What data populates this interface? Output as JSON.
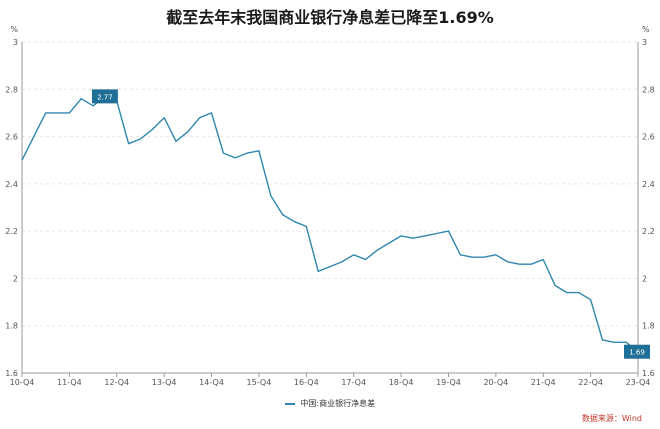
{
  "title": "截至去年末我国商业银行净息差已降至1.69%",
  "source": "数据来源：Wind",
  "colors": {
    "line": "#2f86ad",
    "grid": "#e6e6e6",
    "axis": "#999999",
    "callout": "#1f6f96"
  },
  "chart_data": {
    "type": "line",
    "title": "截至去年末我国商业银行净息差已降至1.69%",
    "xlabel": "",
    "ylabel": "%",
    "y2label": "%",
    "ylim": [
      1.6,
      3.0
    ],
    "yticks": [
      1.6,
      1.8,
      2,
      2.2,
      2.4,
      2.6,
      2.8,
      3
    ],
    "grid": true,
    "legend_position": "bottom",
    "x_tick_labels": [
      "10-Q4",
      "11-Q4",
      "12-Q4",
      "13-Q4",
      "14-Q4",
      "15-Q4",
      "16-Q4",
      "17-Q4",
      "18-Q4",
      "19-Q4",
      "20-Q4",
      "21-Q4",
      "22-Q4",
      "23-Q4"
    ],
    "x": [
      "10-Q4",
      "11-Q1",
      "11-Q2",
      "11-Q3",
      "11-Q4",
      "12-Q1",
      "12-Q2",
      "12-Q3",
      "12-Q4",
      "13-Q1",
      "13-Q2",
      "13-Q3",
      "13-Q4",
      "14-Q1",
      "14-Q2",
      "14-Q3",
      "14-Q4",
      "15-Q1",
      "15-Q2",
      "15-Q3",
      "15-Q4",
      "16-Q1",
      "16-Q2",
      "16-Q3",
      "16-Q4",
      "17-Q1",
      "17-Q2",
      "17-Q3",
      "17-Q4",
      "18-Q1",
      "18-Q2",
      "18-Q3",
      "18-Q4",
      "19-Q1",
      "19-Q2",
      "19-Q3",
      "19-Q4",
      "20-Q1",
      "20-Q2",
      "20-Q3",
      "20-Q4",
      "21-Q1",
      "21-Q2",
      "21-Q3",
      "21-Q4",
      "22-Q1",
      "22-Q2",
      "22-Q3",
      "22-Q4",
      "23-Q1",
      "23-Q2",
      "23-Q3",
      "23-Q4"
    ],
    "series": [
      {
        "name": "中国:商业银行净息差",
        "values": [
          2.5,
          2.6,
          2.7,
          2.7,
          2.7,
          2.76,
          2.73,
          2.77,
          2.75,
          2.57,
          2.59,
          2.63,
          2.68,
          2.58,
          2.62,
          2.68,
          2.7,
          2.53,
          2.51,
          2.53,
          2.54,
          2.35,
          2.27,
          2.24,
          2.22,
          2.03,
          2.05,
          2.07,
          2.1,
          2.08,
          2.12,
          2.15,
          2.18,
          2.17,
          2.18,
          2.19,
          2.2,
          2.1,
          2.09,
          2.09,
          2.1,
          2.07,
          2.06,
          2.06,
          2.08,
          1.97,
          1.94,
          1.94,
          1.91,
          1.74,
          1.73,
          1.73,
          1.69
        ]
      }
    ],
    "annotations": [
      {
        "x": "12-Q3",
        "label": "2.77"
      },
      {
        "x": "23-Q4",
        "label": "1.69"
      }
    ]
  }
}
